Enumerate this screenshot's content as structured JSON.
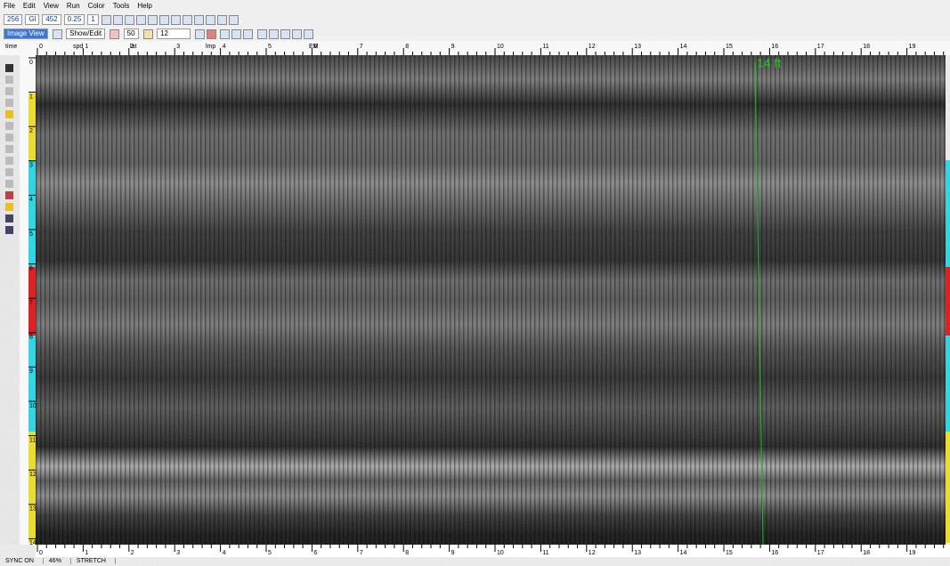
{
  "menu": [
    "File",
    "Edit",
    "View",
    "Run",
    "Color",
    "Tools",
    "Help"
  ],
  "toolbar1": {
    "fields": [
      "256",
      "Gl",
      "452",
      "0.25",
      "1"
    ]
  },
  "toolbar2": {
    "view_mode": "Image View",
    "edit_mode": "Show/Edit",
    "gain": "50",
    "value": "12"
  },
  "ruler_top": {
    "labels": [
      "time",
      "spd",
      "lat",
      "lmp",
      "EM"
    ],
    "ticks": [
      0,
      1,
      2,
      3,
      4,
      5,
      6,
      7,
      8,
      9,
      10,
      11,
      12,
      13,
      14,
      15,
      16,
      17,
      18,
      19
    ]
  },
  "ruler_left": {
    "ticks": [
      0,
      1,
      2,
      3,
      4,
      5,
      6,
      7,
      8,
      9,
      10,
      11,
      12,
      13,
      14
    ]
  },
  "ruler_bottom": {
    "ticks": [
      0,
      1,
      2,
      3,
      4,
      5,
      6,
      7,
      8,
      9,
      10,
      11,
      12,
      13,
      14,
      15,
      16,
      17,
      18,
      19
    ]
  },
  "annotation": "14 ft",
  "status": [
    "SYNC ON",
    "46%",
    "STRETCH"
  ]
}
